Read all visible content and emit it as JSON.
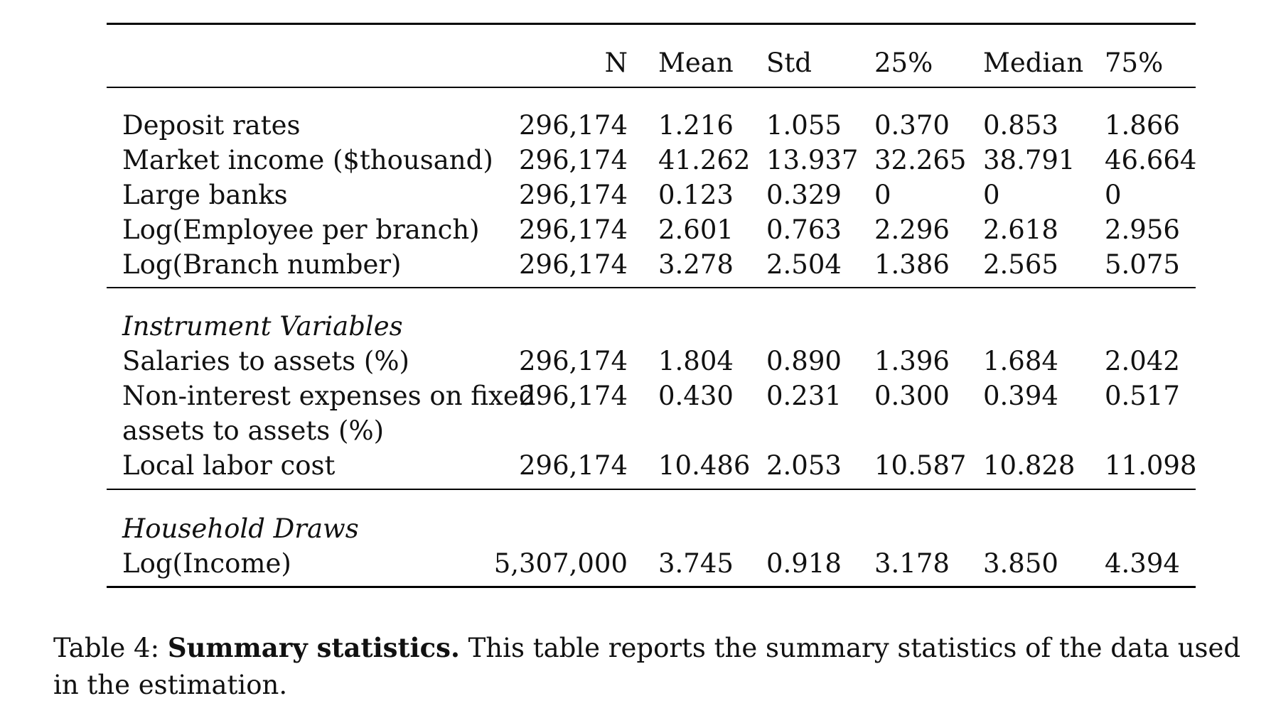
{
  "table": {
    "headers": [
      "N",
      "Mean",
      "Std",
      "25%",
      "Median",
      "75%"
    ],
    "main_rows": [
      {
        "label": "Deposit rates",
        "values": [
          "296,174",
          "1.216",
          "1.055",
          "0.370",
          "0.853",
          "1.866"
        ]
      },
      {
        "label": "Market income ($thousand)",
        "values": [
          "296,174",
          "41.262",
          "13.937",
          "32.265",
          "38.791",
          "46.664"
        ]
      },
      {
        "label": "Large banks",
        "values": [
          "296,174",
          "0.123",
          "0.329",
          "0",
          "0",
          "0"
        ]
      },
      {
        "label": "Log(Employee per branch)",
        "values": [
          "296,174",
          "2.601",
          "0.763",
          "2.296",
          "2.618",
          "2.956"
        ]
      },
      {
        "label": "Log(Branch number)",
        "values": [
          "296,174",
          "3.278",
          "2.504",
          "1.386",
          "2.565",
          "5.075"
        ]
      }
    ],
    "section_iv": {
      "title": "Instrument Variables",
      "rows": [
        {
          "label": "Salaries to assets (%)",
          "values": [
            "296,174",
            "1.804",
            "0.890",
            "1.396",
            "1.684",
            "2.042"
          ]
        },
        {
          "label": "Non-interest expenses on fixed",
          "label2": "assets to assets (%)",
          "values": [
            "296,174",
            "0.430",
            "0.231",
            "0.300",
            "0.394",
            "0.517"
          ]
        },
        {
          "label": "Local labor cost",
          "values": [
            "296,174",
            "10.486",
            "2.053",
            "10.587",
            "10.828",
            "11.098"
          ]
        }
      ]
    },
    "section_hh": {
      "title": "Household Draws",
      "rows": [
        {
          "label": "Log(Income)",
          "values": [
            "5,307,000",
            "3.745",
            "0.918",
            "3.178",
            "3.850",
            "4.394"
          ]
        }
      ]
    }
  },
  "caption": {
    "prefix": "Table 4: ",
    "bold": "Summary statistics.",
    "text": " This table reports the summary statistics of the data used in the estimation."
  }
}
